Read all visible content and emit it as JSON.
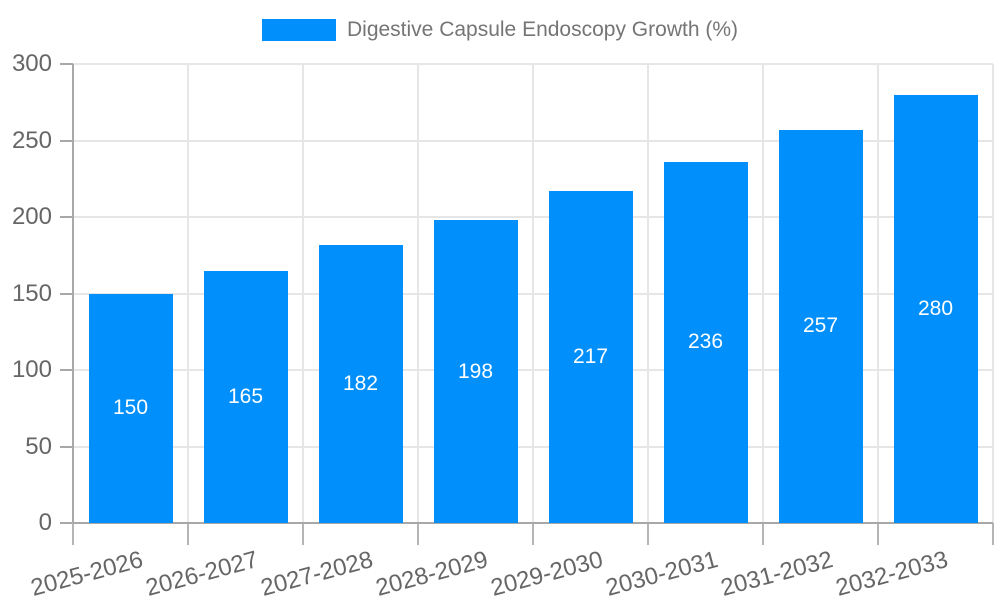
{
  "legend": {
    "label": "Digestive Capsule Endoscopy Growth (%)"
  },
  "chart_data": {
    "type": "bar",
    "title": "Digestive Capsule Endoscopy Growth (%)",
    "categories": [
      "2025-2026",
      "2026-2027",
      "2027-2028",
      "2028-2029",
      "2029-2030",
      "2030-2031",
      "2031-2032",
      "2032-2033"
    ],
    "values": [
      150,
      165,
      182,
      198,
      217,
      236,
      257,
      280
    ],
    "xlabel": "",
    "ylabel": "",
    "ylim": [
      0,
      300
    ],
    "ytick_step": 50,
    "ytick_labels": [
      "0",
      "50",
      "100",
      "150",
      "200",
      "250",
      "300"
    ],
    "grid": true,
    "legend_position": "top",
    "value_labels_position": "inside-center",
    "x_label_rotation_deg": -15
  },
  "colors": {
    "bar": "#008FFB",
    "grid": "#e6e6e6",
    "axis": "#a8a8a8",
    "tick_mark": "#b5b5b5",
    "tick_label": "#666666",
    "legend_label": "#757575",
    "value_label": "#ffffff"
  }
}
